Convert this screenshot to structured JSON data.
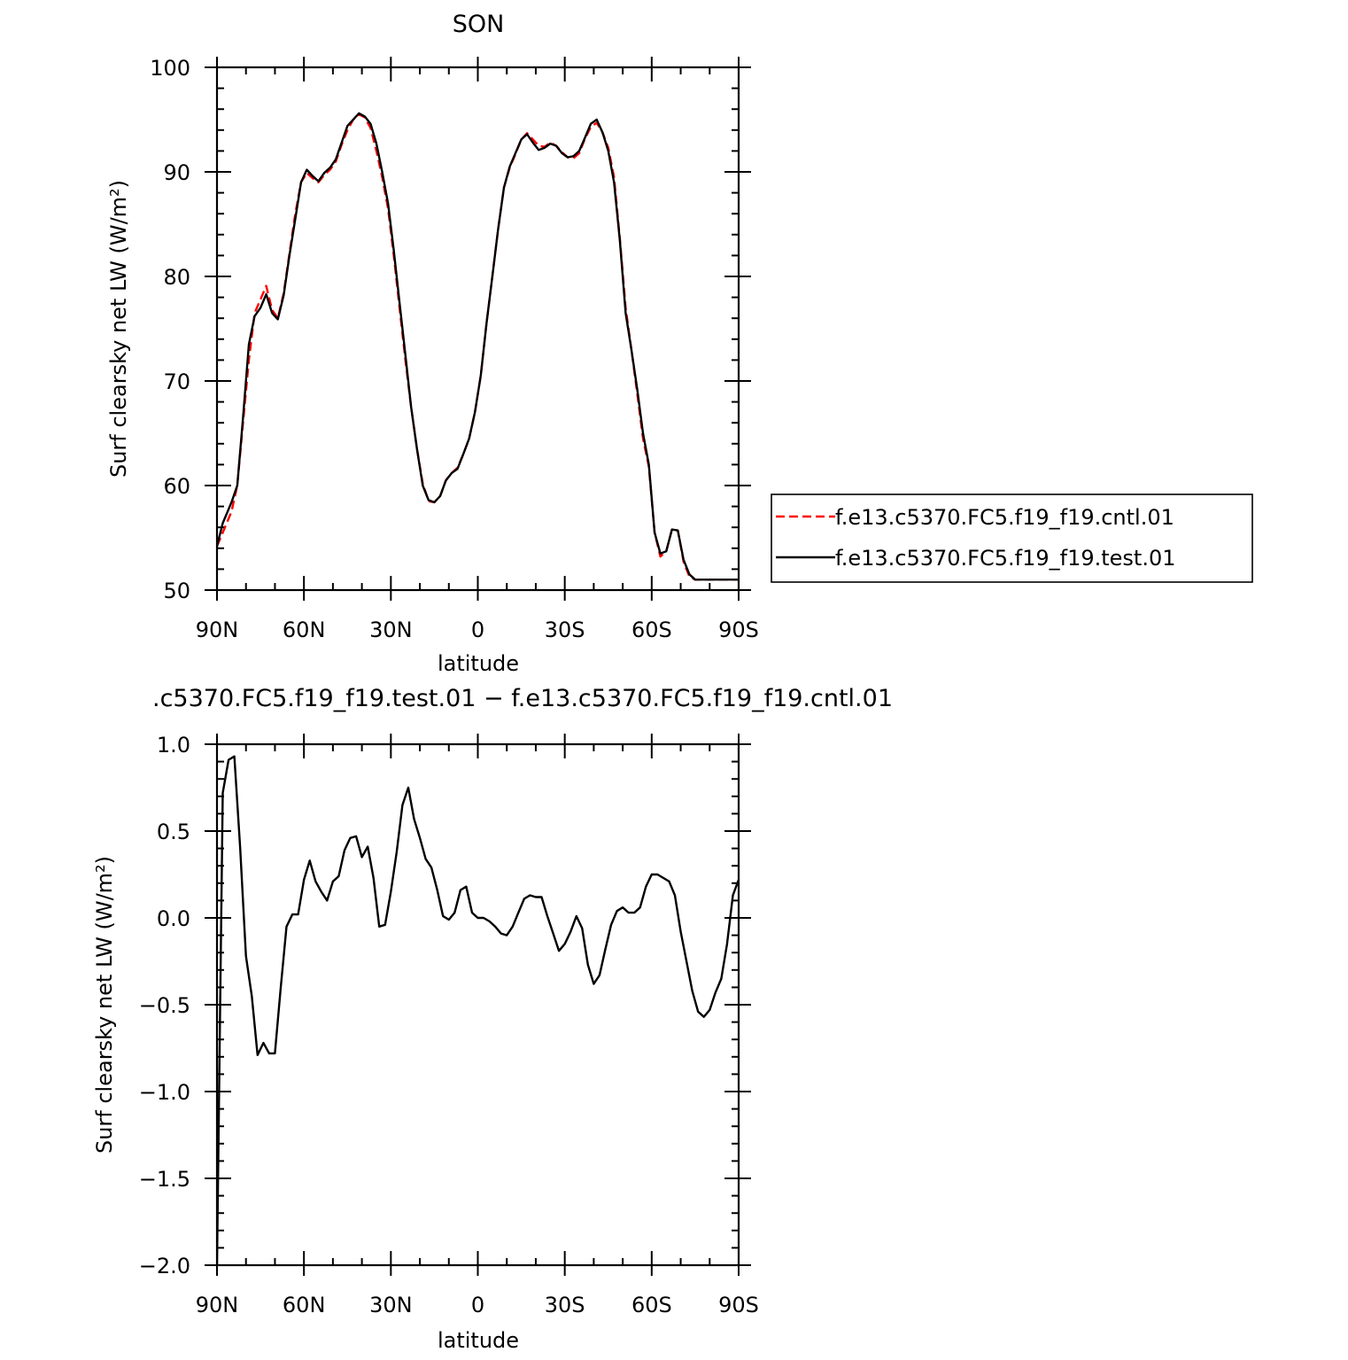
{
  "chart_data": [
    {
      "type": "line",
      "title": "SON",
      "xlabel": "latitude",
      "ylabel": "Surf clearsky net LW (W/m²)",
      "xlim": [
        90,
        -90
      ],
      "ylim": [
        50,
        100
      ],
      "xticks": [
        90,
        60,
        30,
        0,
        -30,
        -60,
        -90
      ],
      "xtick_labels": [
        "90N",
        "60N",
        "30N",
        "0",
        "30S",
        "60S",
        "90S"
      ],
      "yticks": [
        50,
        60,
        70,
        80,
        90,
        100
      ],
      "ytick_labels": [
        "50",
        "60",
        "70",
        "80",
        "90",
        "100"
      ],
      "grid": false,
      "legend_placement": "right",
      "series": [
        {
          "name": "f.e13.c5370.FC5.f19_f19.cntl.01",
          "color": "#ff0000",
          "dash": "dashed",
          "x": [
            90,
            88,
            85,
            83,
            81,
            79,
            77,
            75,
            73,
            71,
            69,
            67,
            65,
            63,
            61,
            59,
            57,
            55,
            53,
            51,
            49,
            47,
            45,
            43,
            41,
            39,
            37,
            35,
            33,
            31,
            29,
            27,
            25,
            23,
            21,
            19,
            17,
            15,
            13,
            11,
            9,
            7,
            5,
            3,
            1,
            -1,
            -3,
            -5,
            -7,
            -9,
            -11,
            -13,
            -15,
            -17,
            -19,
            -21,
            -23,
            -25,
            -27,
            -29,
            -31,
            -33,
            -35,
            -37,
            -39,
            -41,
            -43,
            -45,
            -47,
            -49,
            -51,
            -53,
            -55,
            -57,
            -59,
            -61,
            -63,
            -65,
            -67,
            -69,
            -71,
            -73,
            -75,
            -77,
            -79,
            -81,
            -83,
            -85,
            -87,
            -89,
            -90
          ],
          "y": [
            54.2,
            55.5,
            57.5,
            60.0,
            66.0,
            72.0,
            76.5,
            77.8,
            79.1,
            76.8,
            76.0,
            78.4,
            82.2,
            86.0,
            89.0,
            89.9,
            89.4,
            89.0,
            89.7,
            90.2,
            91.0,
            92.6,
            94.0,
            95.0,
            95.5,
            95.2,
            94.2,
            92.0,
            89.5,
            86.5,
            82.0,
            77.0,
            72.0,
            67.5,
            63.5,
            60.2,
            58.5,
            58.4,
            59.0,
            60.5,
            61.2,
            61.7,
            63.0,
            64.5,
            67.0,
            70.5,
            75.5,
            80.0,
            84.5,
            88.5,
            90.4,
            91.7,
            93.1,
            93.7,
            93.1,
            92.5,
            92.4,
            92.8,
            92.5,
            91.9,
            91.4,
            91.3,
            91.8,
            93.2,
            94.3,
            94.7,
            93.8,
            92.3,
            89.5,
            83.7,
            77.0,
            73.0,
            68.8,
            64.5,
            61.8,
            55.5,
            53.2,
            53.7,
            55.8,
            55.7,
            52.7,
            51.3,
            51.0,
            51.0,
            51.0,
            51.0,
            51.0,
            51.0,
            51.0,
            51.0,
            51.0
          ]
        },
        {
          "name": "f.e13.c5370.FC5.f19_f19.test.01",
          "color": "#000000",
          "dash": "solid",
          "x": [
            90,
            88,
            85,
            83,
            81,
            79,
            77,
            75,
            73,
            71,
            69,
            67,
            65,
            63,
            61,
            59,
            57,
            55,
            53,
            51,
            49,
            47,
            45,
            43,
            41,
            39,
            37,
            35,
            33,
            31,
            29,
            27,
            25,
            23,
            21,
            19,
            17,
            15,
            13,
            11,
            9,
            7,
            5,
            3,
            1,
            -1,
            -3,
            -5,
            -7,
            -9,
            -11,
            -13,
            -15,
            -17,
            -19,
            -21,
            -23,
            -25,
            -27,
            -29,
            -31,
            -33,
            -35,
            -37,
            -39,
            -41,
            -43,
            -45,
            -47,
            -49,
            -51,
            -53,
            -55,
            -57,
            -59,
            -61,
            -63,
            -65,
            -67,
            -69,
            -71,
            -73,
            -75,
            -77,
            -79,
            -81,
            -83,
            -85,
            -87,
            -89,
            -90
          ],
          "y": [
            54.2,
            56.4,
            58.4,
            60.0,
            66.5,
            73.5,
            76.2,
            77.0,
            78.3,
            76.5,
            75.9,
            78.2,
            82.0,
            85.5,
            89.0,
            90.2,
            89.6,
            89.1,
            89.9,
            90.4,
            91.2,
            92.8,
            94.4,
            95.0,
            95.6,
            95.3,
            94.6,
            92.7,
            90.0,
            87.0,
            82.5,
            77.5,
            72.5,
            67.5,
            63.5,
            60.0,
            58.6,
            58.4,
            59.0,
            60.5,
            61.2,
            61.6,
            63.0,
            64.5,
            67.0,
            70.5,
            75.5,
            80.0,
            84.5,
            88.5,
            90.5,
            91.8,
            93.1,
            93.6,
            92.8,
            92.1,
            92.3,
            92.7,
            92.5,
            91.8,
            91.4,
            91.5,
            92.0,
            93.3,
            94.6,
            95.0,
            93.8,
            92.0,
            89.0,
            83.5,
            76.5,
            73.0,
            69.2,
            65.0,
            62.0,
            55.5,
            53.5,
            53.7,
            55.8,
            55.7,
            52.9,
            51.5,
            51.0,
            51.0,
            51.0,
            51.0,
            51.0,
            51.0,
            51.0,
            51.0,
            51.0
          ]
        }
      ]
    },
    {
      "type": "line",
      "title": ".c5370.FC5.f19_f19.test.01 − f.e13.c5370.FC5.f19_f19.cntl.01",
      "xlabel": "latitude",
      "ylabel": "Surf clearsky net LW (W/m²)",
      "xlim": [
        90,
        -90
      ],
      "ylim": [
        -2.0,
        1.0
      ],
      "xticks": [
        90,
        60,
        30,
        0,
        -30,
        -60,
        -90
      ],
      "xtick_labels": [
        "90N",
        "60N",
        "30N",
        "0",
        "30S",
        "60S",
        "90S"
      ],
      "yticks": [
        -2.0,
        -1.5,
        -1.0,
        -0.5,
        0.0,
        0.5,
        1.0
      ],
      "ytick_labels": [
        "−2.0",
        "−1.5",
        "−1.0",
        "−0.5",
        "0.0",
        "0.5",
        "1.0"
      ],
      "grid": false,
      "series": [
        {
          "color": "#000000",
          "dash": "solid",
          "x": [
            90,
            88,
            86,
            84,
            82,
            80,
            78,
            76,
            74,
            72,
            70,
            68,
            66,
            64,
            62,
            60,
            58,
            56,
            54,
            52,
            50,
            48,
            46,
            44,
            42,
            40,
            38,
            36,
            34,
            32,
            30,
            28,
            26,
            24,
            22,
            20,
            18,
            16,
            14,
            12,
            10,
            8,
            6,
            4,
            2,
            0,
            -2,
            -4,
            -6,
            -8,
            -10,
            -12,
            -14,
            -16,
            -18,
            -20,
            -22,
            -24,
            -26,
            -28,
            -30,
            -32,
            -34,
            -36,
            -38,
            -40,
            -42,
            -44,
            -46,
            -48,
            -50,
            -52,
            -54,
            -56,
            -58,
            -60,
            -62,
            -64,
            -66,
            -68,
            -70,
            -72,
            -74,
            -76,
            -78,
            -80,
            -82,
            -84,
            -86,
            -88,
            -90
          ],
          "y": [
            -2.0,
            0.72,
            0.91,
            0.93,
            0.4,
            -0.22,
            -0.45,
            -0.79,
            -0.72,
            -0.78,
            -0.78,
            -0.4,
            -0.05,
            0.02,
            0.02,
            0.22,
            0.33,
            0.21,
            0.15,
            0.1,
            0.21,
            0.24,
            0.39,
            0.46,
            0.47,
            0.35,
            0.41,
            0.23,
            -0.05,
            -0.04,
            0.15,
            0.38,
            0.65,
            0.75,
            0.57,
            0.46,
            0.34,
            0.29,
            0.16,
            0.01,
            -0.01,
            0.03,
            0.16,
            0.18,
            0.03,
            0.0,
            0.0,
            -0.02,
            -0.05,
            -0.09,
            -0.1,
            -0.05,
            0.03,
            0.11,
            0.13,
            0.12,
            0.12,
            0.01,
            -0.09,
            -0.19,
            -0.15,
            -0.08,
            0.01,
            -0.06,
            -0.27,
            -0.38,
            -0.33,
            -0.18,
            -0.04,
            0.04,
            0.06,
            0.03,
            0.03,
            0.06,
            0.18,
            0.25,
            0.25,
            0.23,
            0.21,
            0.13,
            -0.08,
            -0.25,
            -0.42,
            -0.54,
            -0.57,
            -0.53,
            -0.43,
            -0.35,
            -0.15,
            0.13,
            0.22
          ]
        }
      ]
    }
  ]
}
